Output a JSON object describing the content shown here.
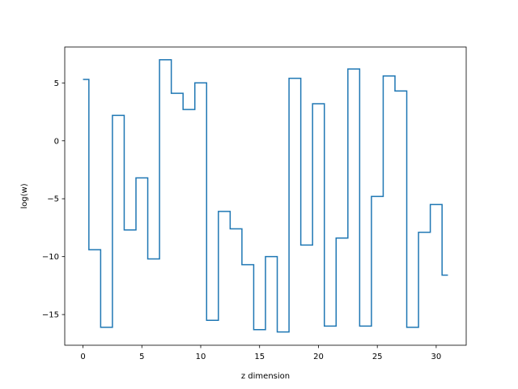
{
  "chart_data": {
    "type": "line",
    "drawstyle": "steps-mid",
    "title": "",
    "xlabel": "z dimension",
    "ylabel": "log(w)",
    "xlim": [
      -1.55,
      32.55
    ],
    "ylim": [
      -17.65,
      8.1
    ],
    "xticks": [
      0,
      5,
      10,
      15,
      20,
      25,
      30
    ],
    "yticks": [
      -15,
      -10,
      -5,
      0,
      5
    ],
    "grid": false,
    "legend": "none",
    "series": [
      {
        "color": "#1f77b4",
        "x": [
          0,
          1,
          2,
          3,
          4,
          5,
          6,
          7,
          8,
          9,
          10,
          11,
          12,
          13,
          14,
          15,
          16,
          17,
          18,
          19,
          20,
          21,
          22,
          23,
          24,
          25,
          26,
          27,
          28,
          29,
          30,
          31
        ],
        "y": [
          5.3,
          -9.4,
          -16.1,
          2.2,
          -7.7,
          -3.2,
          -10.2,
          7.0,
          4.1,
          2.7,
          5.0,
          -15.5,
          -6.1,
          -7.6,
          -10.7,
          -16.3,
          -10.0,
          -16.5,
          5.4,
          -9.0,
          3.2,
          -16.0,
          -8.4,
          6.2,
          -16.0,
          -4.8,
          5.6,
          4.3,
          -16.1,
          -7.9,
          -5.5,
          -11.6
        ]
      }
    ]
  }
}
